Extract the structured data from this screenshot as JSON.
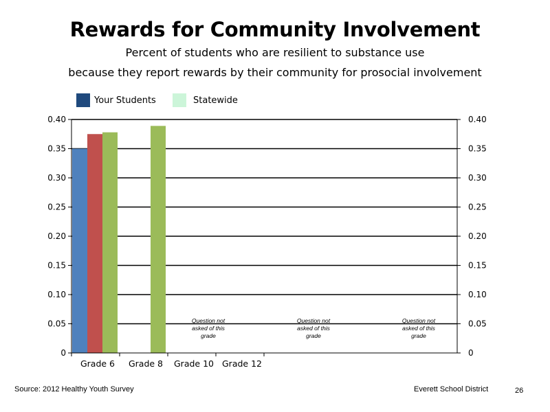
{
  "page": {
    "source": "Source: 2012 Healthy Youth Survey",
    "district": "Everett School District",
    "page_number": "26"
  },
  "legend": {
    "your_students": "Your Students",
    "statewide": "Statewide",
    "your_students_color": "#1f497d",
    "statewide_color": "#ccf5d9"
  },
  "chart_data": {
    "type": "bar",
    "title": "Rewards for Community Involvement",
    "subtitle_lines": [
      "Percent of students who are resilient to substance use",
      "because they report rewards by their community for prosocial involvement"
    ],
    "categories": [
      "Grade 6",
      "Grade 8",
      "Grade 10",
      "Grade 12"
    ],
    "series": [
      {
        "color": "#4f81bd",
        "values": [
          0.35,
          null,
          null,
          null
        ]
      },
      {
        "color": "#c0504d",
        "values": [
          0.375,
          null,
          null,
          null
        ]
      },
      {
        "color": "#9bbb59",
        "values": [
          0.378,
          0.389,
          null,
          null
        ]
      }
    ],
    "ylim": [
      0,
      0.4
    ],
    "yticks": [
      "0",
      "0.05",
      "0.10",
      "0.15",
      "0.20",
      "0.25",
      "0.30",
      "0.35",
      "0.40"
    ],
    "ytick_values": [
      0,
      0.05,
      0.1,
      0.15,
      0.2,
      0.25,
      0.3,
      0.35,
      0.4
    ],
    "secondary_axis": true,
    "grid": true,
    "annotations": [
      {
        "line1": "Question not",
        "line2": "asked of this",
        "line3": "grade"
      },
      {
        "line1": "Question not",
        "line2": "asked of this",
        "line3": "grade"
      },
      {
        "line1": "Question not",
        "line2": "asked of this",
        "line3": "grade"
      }
    ]
  }
}
